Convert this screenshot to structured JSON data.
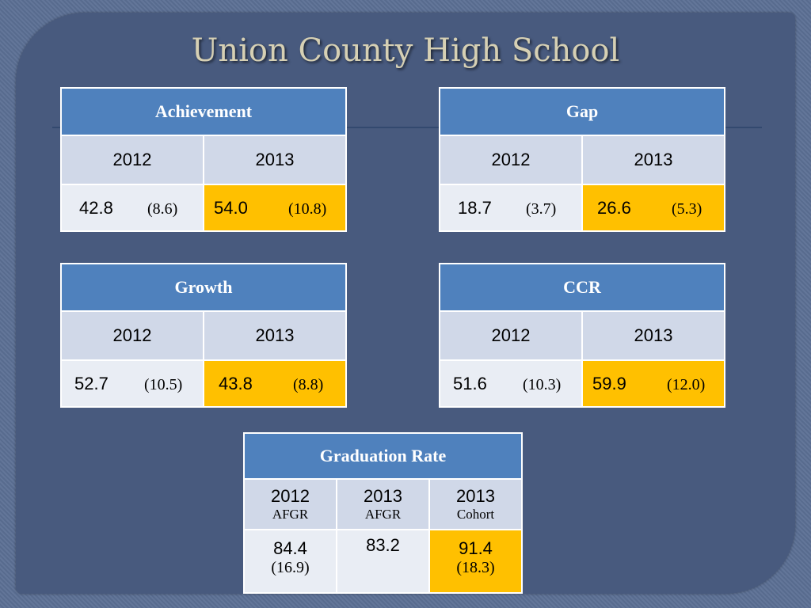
{
  "title": "Union County High School",
  "tables": {
    "achievement": {
      "header": "Achievement",
      "years": [
        "2012",
        "2013"
      ],
      "values": [
        {
          "value": "42.8",
          "paren": "(8.6)"
        },
        {
          "value": "54.0",
          "paren": "(10.8)"
        }
      ]
    },
    "gap": {
      "header": "Gap",
      "years": [
        "2012",
        "2013"
      ],
      "values": [
        {
          "value": "18.7",
          "paren": "(3.7)"
        },
        {
          "value": "26.6",
          "paren": "(5.3)"
        }
      ]
    },
    "growth": {
      "header": "Growth",
      "years": [
        "2012",
        "2013"
      ],
      "values": [
        {
          "value": "52.7",
          "paren": "(10.5)"
        },
        {
          "value": "43.8",
          "paren": "(8.8)"
        }
      ]
    },
    "ccr": {
      "header": "CCR",
      "years": [
        "2012",
        "2013"
      ],
      "values": [
        {
          "value": "51.6",
          "paren": "(10.3)"
        },
        {
          "value": "59.9",
          "paren": "(12.0)"
        }
      ]
    },
    "graduation": {
      "header": "Graduation Rate",
      "columns": [
        {
          "year": "2012",
          "sub": "AFGR"
        },
        {
          "year": "2013",
          "sub": "AFGR"
        },
        {
          "year": "2013",
          "sub": "Cohort"
        }
      ],
      "values": [
        {
          "value": "84.4",
          "paren": "(16.9)"
        },
        {
          "value": "83.2",
          "paren": ""
        },
        {
          "value": "91.4",
          "paren": "(18.3)"
        }
      ]
    }
  },
  "colors": {
    "header_blue": "#4f81bd",
    "highlight": "#ffc000",
    "year_row": "#d0d8e8",
    "value_row": "#e9edf4"
  }
}
